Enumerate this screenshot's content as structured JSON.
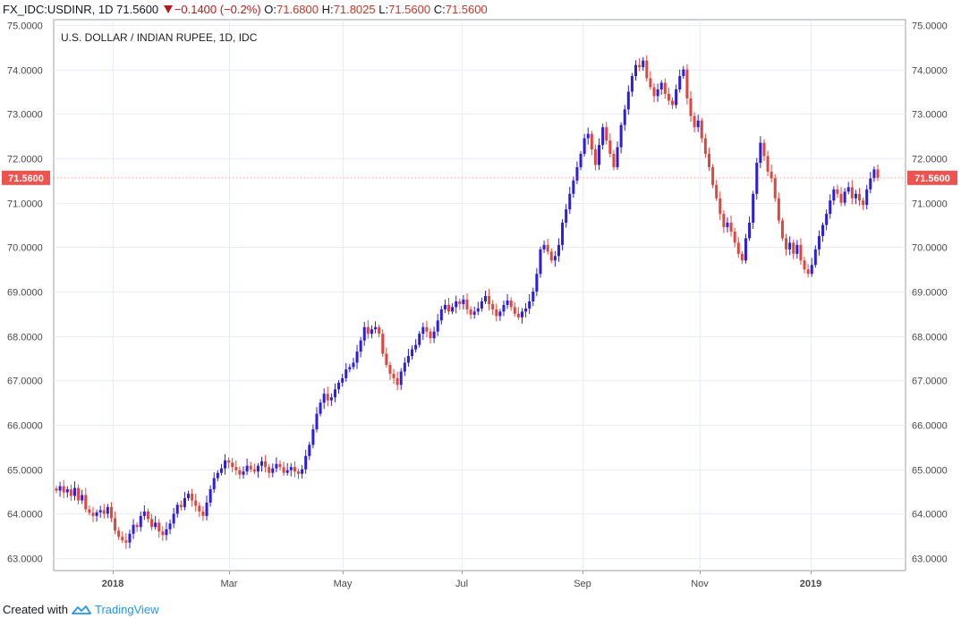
{
  "header": {
    "symbol": "FX_IDC:USDINR, 1D",
    "last": "71.5600",
    "change": "−0.1400 (−0.2%)",
    "open_label": "O:",
    "open": "71.6800",
    "high_label": "H:",
    "high": "71.8025",
    "low_label": "L:",
    "low": "71.5600",
    "close_label": "C:",
    "close": "71.5600"
  },
  "footer": {
    "created_with": "Created with",
    "brand": "TradingView"
  },
  "colors": {
    "up": "#2b1ee0",
    "down": "#e0463c",
    "grid": "#e8edf3",
    "price_tag": "#ef5350"
  },
  "chart_data": {
    "type": "candlestick",
    "title": "U.S. DOLLAR / INDIAN RUPEE, 1D, IDC",
    "ylim": [
      62.72,
      75.12
    ],
    "y_ticks": [
      "63.0000",
      "64.0000",
      "65.0000",
      "66.0000",
      "67.0000",
      "68.0000",
      "69.0000",
      "70.0000",
      "71.0000",
      "72.0000",
      "73.0000",
      "74.0000",
      "75.0000"
    ],
    "x_ticks": [
      "2018",
      "Mar",
      "May",
      "Jul",
      "Sep",
      "Nov",
      "2019"
    ],
    "last_price": "71.5600",
    "close_series": [
      64.52,
      64.62,
      64.48,
      64.55,
      64.4,
      64.58,
      64.3,
      64.42,
      64.1,
      64.02,
      63.95,
      64.03,
      64.08,
      64.0,
      64.15,
      63.9,
      63.62,
      63.48,
      63.4,
      63.35,
      63.55,
      63.75,
      63.7,
      63.95,
      64.05,
      63.88,
      63.7,
      63.8,
      63.6,
      63.52,
      63.65,
      63.78,
      64.0,
      64.2,
      64.15,
      64.35,
      64.45,
      64.3,
      64.18,
      64.05,
      63.95,
      64.25,
      64.55,
      64.8,
      64.92,
      65.02,
      65.2,
      65.15,
      65.05,
      64.98,
      64.88,
      64.95,
      65.08,
      65.0,
      64.95,
      65.08,
      65.18,
      65.05,
      64.92,
      65.02,
      65.12,
      65.05,
      64.92,
      64.98,
      65.05,
      64.95,
      64.9,
      65.0,
      65.3,
      65.55,
      65.9,
      66.25,
      66.5,
      66.7,
      66.55,
      66.62,
      66.8,
      66.95,
      67.05,
      67.25,
      67.3,
      67.4,
      67.65,
      67.9,
      68.2,
      68.05,
      68.15,
      68.2,
      68.05,
      67.6,
      67.35,
      67.15,
      67.05,
      66.9,
      67.2,
      67.4,
      67.55,
      67.7,
      67.8,
      68.05,
      68.2,
      68.1,
      67.95,
      68.1,
      68.35,
      68.6,
      68.7,
      68.55,
      68.65,
      68.78,
      68.72,
      68.82,
      68.6,
      68.48,
      68.55,
      68.62,
      68.78,
      68.9,
      68.72,
      68.6,
      68.45,
      68.55,
      68.7,
      68.8,
      68.65,
      68.5,
      68.42,
      68.55,
      68.62,
      68.78,
      69.0,
      69.4,
      69.95,
      70.05,
      69.9,
      69.7,
      69.8,
      70.05,
      70.55,
      70.85,
      71.2,
      71.5,
      71.8,
      72.1,
      72.45,
      72.55,
      72.2,
      71.85,
      72.3,
      72.7,
      72.4,
      72.1,
      71.8,
      72.25,
      72.75,
      73.1,
      73.5,
      73.85,
      74.1,
      74.05,
      74.2,
      73.8,
      73.6,
      73.4,
      73.55,
      73.7,
      73.45,
      73.3,
      73.2,
      73.55,
      73.85,
      74.0,
      73.35,
      72.95,
      72.7,
      72.85,
      72.45,
      72.1,
      71.8,
      71.4,
      71.1,
      70.75,
      70.45,
      70.55,
      70.35,
      70.1,
      69.85,
      69.7,
      70.2,
      70.55,
      71.2,
      71.9,
      72.35,
      72.05,
      71.7,
      71.55,
      71.1,
      70.6,
      70.2,
      69.95,
      70.1,
      69.85,
      70.05,
      69.7,
      69.5,
      69.4,
      69.6,
      69.95,
      70.25,
      70.5,
      70.75,
      71.05,
      71.3,
      71.2,
      71.0,
      71.25,
      71.35,
      71.1,
      71.2,
      71.05,
      70.95,
      71.3,
      71.55,
      71.75,
      71.56
    ]
  }
}
